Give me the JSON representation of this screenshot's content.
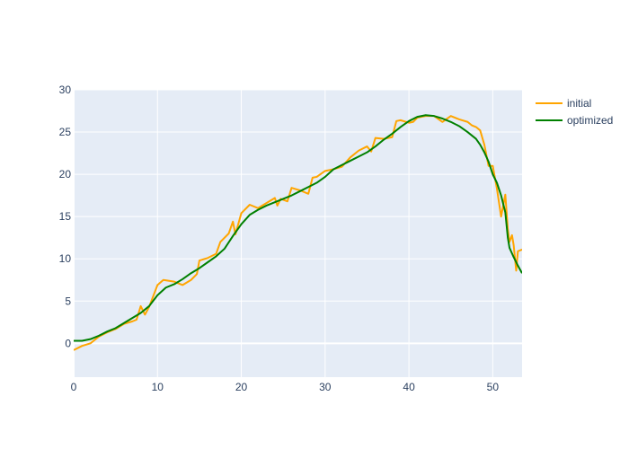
{
  "chart_data": {
    "type": "line",
    "title": "",
    "xlabel": "",
    "ylabel": "",
    "xlim": [
      0,
      53.5
    ],
    "ylim": [
      -4,
      30
    ],
    "grid": true,
    "legend_position": "top-right",
    "x_ticks": [
      0,
      10,
      20,
      30,
      40,
      50
    ],
    "y_ticks": [
      0,
      5,
      10,
      15,
      20,
      25,
      30
    ],
    "series": [
      {
        "name": "initial",
        "color": "#FFA500",
        "x": [
          0,
          1,
          2,
          3,
          4,
          5,
          5.5,
          6,
          7,
          7.5,
          8,
          8.5,
          9,
          10,
          10.7,
          12,
          13,
          14,
          14.7,
          15,
          16,
          17,
          17.5,
          18.5,
          19,
          19.3,
          20,
          21,
          22,
          23,
          24,
          24.3,
          24.7,
          25.5,
          26,
          27,
          28,
          28.5,
          29,
          30,
          31,
          32,
          33,
          34,
          35,
          35.5,
          36,
          37,
          38,
          38.5,
          39,
          40,
          40.5,
          41,
          42,
          43,
          44,
          45,
          46,
          47,
          47.5,
          48,
          48.5,
          49,
          49.5,
          50,
          50.5,
          51,
          51.5,
          51.8,
          52,
          52.3,
          52.5,
          52.8,
          53,
          53.5
        ],
        "y": [
          -0.8,
          -0.3,
          0,
          0.8,
          1.3,
          1.7,
          2.0,
          2.3,
          2.6,
          2.8,
          4.4,
          3.4,
          4.3,
          6.9,
          7.5,
          7.3,
          6.9,
          7.5,
          8.2,
          9.8,
          10.1,
          10.6,
          12.0,
          13.0,
          14.4,
          12.9,
          15.4,
          16.4,
          16.0,
          16.6,
          17.2,
          16.3,
          17.1,
          16.8,
          18.4,
          18.1,
          17.7,
          19.6,
          19.7,
          20.4,
          20.6,
          20.9,
          22.0,
          22.8,
          23.3,
          22.7,
          24.3,
          24.2,
          24.4,
          26.3,
          26.4,
          26.1,
          26.2,
          26.7,
          26.9,
          26.9,
          26.2,
          26.9,
          26.5,
          26.2,
          25.8,
          25.6,
          25.2,
          23.5,
          21.0,
          21.0,
          18.3,
          15.0,
          17.6,
          13.5,
          12.0,
          12.8,
          11.6,
          8.6,
          10.9,
          11.1
        ]
      },
      {
        "name": "optimized",
        "color": "#008000",
        "x": [
          0,
          1,
          2,
          3,
          4,
          5,
          6,
          7,
          8,
          9,
          10,
          11,
          12,
          13,
          14,
          15,
          16,
          17,
          18,
          19,
          20,
          21,
          22,
          23,
          24,
          25,
          26,
          27,
          28,
          29,
          30,
          31,
          32,
          33,
          34,
          35,
          36,
          37,
          38,
          39,
          40,
          41,
          42,
          43,
          44,
          45,
          46,
          47,
          48,
          48.5,
          49,
          49.5,
          50,
          50.5,
          51,
          51.5,
          51.8,
          52,
          52.5,
          53,
          53.5
        ],
        "y": [
          0.3,
          0.3,
          0.5,
          0.9,
          1.4,
          1.8,
          2.4,
          3.0,
          3.6,
          4.4,
          5.7,
          6.6,
          7.0,
          7.6,
          8.3,
          8.9,
          9.6,
          10.3,
          11.2,
          12.7,
          14.1,
          15.2,
          15.8,
          16.3,
          16.7,
          17.1,
          17.5,
          18.0,
          18.5,
          19.0,
          19.7,
          20.6,
          21.1,
          21.6,
          22.1,
          22.6,
          23.3,
          24.1,
          24.8,
          25.6,
          26.3,
          26.8,
          27.0,
          26.9,
          26.6,
          26.2,
          25.7,
          25.0,
          24.2,
          23.5,
          22.6,
          21.5,
          20.0,
          19.0,
          17.5,
          15.5,
          12.5,
          11.3,
          10.2,
          9.2,
          8.3
        ]
      }
    ]
  }
}
